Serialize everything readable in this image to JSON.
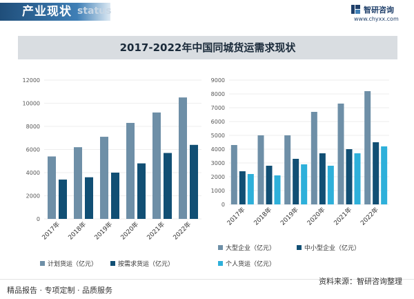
{
  "header": {
    "section_title": "产业现状",
    "ghost_text": "status",
    "logo_name": "智研咨询",
    "logo_url": "www.chyxx.com"
  },
  "banner": {
    "title": "2017-2022年中国同城货运需求现状"
  },
  "footer": {
    "left": "精品报告 · 专项定制 · 品质服务",
    "right": "资料来源：智研咨询整理"
  },
  "colors": {
    "series_a": "#6e8fa7",
    "series_b": "#114f74",
    "series_c": "#2eb0da"
  },
  "chart_data": [
    {
      "type": "bar",
      "title": "",
      "categories": [
        "2017年",
        "2018年",
        "2019年",
        "2020年",
        "2021年",
        "2022年"
      ],
      "series": [
        {
          "name": "计划货运（亿元）",
          "values": [
            5400,
            6200,
            7100,
            8300,
            9200,
            10500
          ]
        },
        {
          "name": "按需求货运（亿元）",
          "values": [
            3400,
            3600,
            4000,
            4800,
            5700,
            6400
          ]
        }
      ],
      "ylim": [
        0,
        12000
      ],
      "yticks": [
        0,
        2000,
        4000,
        6000,
        8000,
        10000,
        12000
      ],
      "xlabel": "",
      "ylabel": "",
      "legend": "bottom"
    },
    {
      "type": "bar",
      "title": "",
      "categories": [
        "2017年",
        "2018年",
        "2019年",
        "2020年",
        "2021年",
        "2022年"
      ],
      "series": [
        {
          "name": "大型企业（亿元）",
          "values": [
            4300,
            5000,
            5000,
            6700,
            7300,
            8200
          ]
        },
        {
          "name": "中小型企业（亿元）",
          "values": [
            2400,
            2800,
            3300,
            3700,
            4000,
            4500
          ]
        },
        {
          "name": "个人货运（亿元）",
          "values": [
            2200,
            2100,
            2900,
            2800,
            3700,
            4200
          ]
        }
      ],
      "ylim": [
        0,
        9000
      ],
      "yticks": [
        0,
        1000,
        2000,
        3000,
        4000,
        5000,
        6000,
        7000,
        8000,
        9000
      ],
      "xlabel": "",
      "ylabel": "",
      "legend": "bottom"
    }
  ]
}
